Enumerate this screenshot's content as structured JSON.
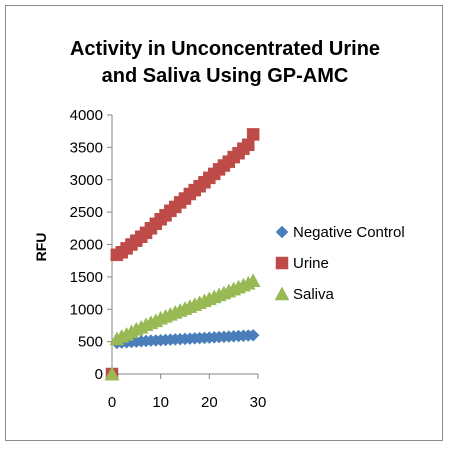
{
  "chart_data": {
    "type": "scatter",
    "title": "Activity in Unconcentrated Urine and Saliva Using GP-AMC",
    "title_lines": [
      "Activity in Unconcentrated Urine",
      "and Saliva Using GP-AMC"
    ],
    "xlabel": "",
    "ylabel": "RFU",
    "xlim": [
      0,
      30
    ],
    "ylim": [
      0,
      4000
    ],
    "xticks": [
      0,
      10,
      20,
      30
    ],
    "yticks": [
      0,
      500,
      1000,
      1500,
      2000,
      2500,
      3000,
      3500,
      4000
    ],
    "grid": false,
    "legend_position": "right",
    "series": [
      {
        "name": "Negative Control",
        "marker": "diamond",
        "color": "#4a7ebb",
        "points": [
          [
            0,
            0
          ],
          [
            1,
            480
          ],
          [
            2,
            485
          ],
          [
            3,
            490
          ],
          [
            4,
            495
          ],
          [
            5,
            500
          ],
          [
            6,
            505
          ],
          [
            7,
            510
          ],
          [
            8,
            515
          ],
          [
            9,
            518
          ],
          [
            10,
            522
          ],
          [
            11,
            526
          ],
          [
            12,
            530
          ],
          [
            13,
            534
          ],
          [
            14,
            538
          ],
          [
            15,
            542
          ],
          [
            16,
            546
          ],
          [
            17,
            550
          ],
          [
            18,
            554
          ],
          [
            19,
            558
          ],
          [
            20,
            562
          ],
          [
            21,
            566
          ],
          [
            22,
            570
          ],
          [
            23,
            574
          ],
          [
            24,
            578
          ],
          [
            25,
            582
          ],
          [
            26,
            586
          ],
          [
            27,
            590
          ],
          [
            28,
            594
          ],
          [
            29,
            598
          ]
        ]
      },
      {
        "name": "Urine",
        "marker": "square",
        "color": "#be4b48",
        "points": [
          [
            0,
            0
          ],
          [
            1,
            1840
          ],
          [
            2,
            1880
          ],
          [
            3,
            1940
          ],
          [
            4,
            2000
          ],
          [
            5,
            2060
          ],
          [
            6,
            2120
          ],
          [
            7,
            2180
          ],
          [
            8,
            2250
          ],
          [
            9,
            2320
          ],
          [
            10,
            2390
          ],
          [
            11,
            2450
          ],
          [
            12,
            2520
          ],
          [
            13,
            2580
          ],
          [
            14,
            2650
          ],
          [
            15,
            2710
          ],
          [
            16,
            2780
          ],
          [
            17,
            2840
          ],
          [
            18,
            2900
          ],
          [
            19,
            2960
          ],
          [
            20,
            3030
          ],
          [
            21,
            3090
          ],
          [
            22,
            3160
          ],
          [
            23,
            3220
          ],
          [
            24,
            3280
          ],
          [
            25,
            3350
          ],
          [
            26,
            3410
          ],
          [
            27,
            3480
          ],
          [
            28,
            3540
          ],
          [
            29,
            3700
          ]
        ]
      },
      {
        "name": "Saliva",
        "marker": "triangle",
        "color": "#98b954",
        "points": [
          [
            0,
            0
          ],
          [
            1,
            540
          ],
          [
            2,
            580
          ],
          [
            3,
            610
          ],
          [
            4,
            650
          ],
          [
            5,
            690
          ],
          [
            6,
            720
          ],
          [
            7,
            760
          ],
          [
            8,
            790
          ],
          [
            9,
            820
          ],
          [
            10,
            860
          ],
          [
            11,
            890
          ],
          [
            12,
            920
          ],
          [
            13,
            950
          ],
          [
            14,
            980
          ],
          [
            15,
            1010
          ],
          [
            16,
            1040
          ],
          [
            17,
            1070
          ],
          [
            18,
            1100
          ],
          [
            19,
            1130
          ],
          [
            20,
            1160
          ],
          [
            21,
            1190
          ],
          [
            22,
            1220
          ],
          [
            23,
            1250
          ],
          [
            24,
            1280
          ],
          [
            25,
            1310
          ],
          [
            26,
            1340
          ],
          [
            27,
            1370
          ],
          [
            28,
            1400
          ],
          [
            29,
            1440
          ]
        ]
      }
    ]
  }
}
